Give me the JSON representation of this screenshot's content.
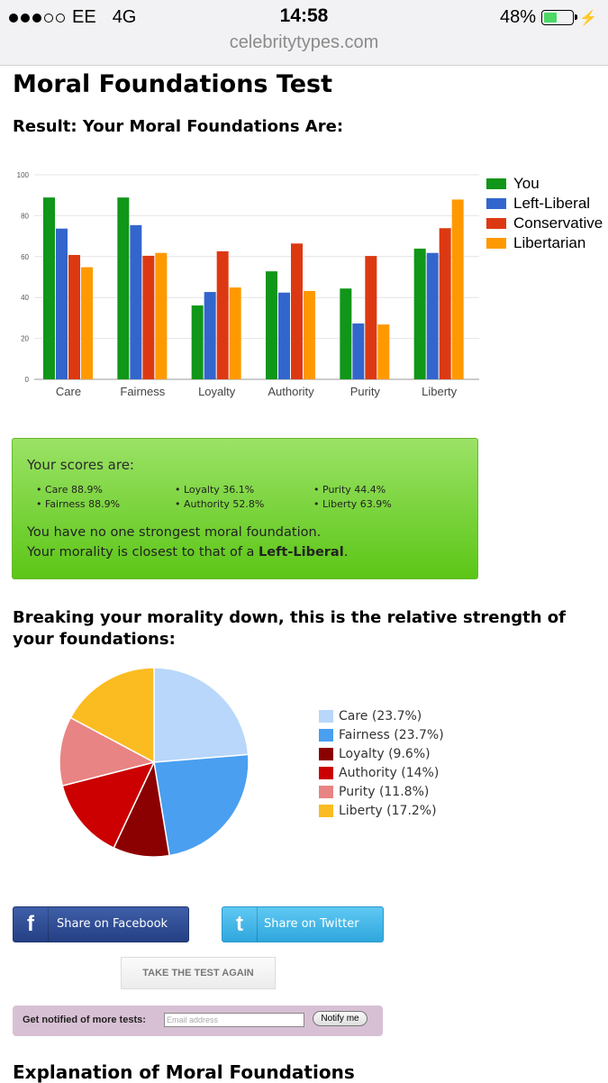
{
  "status_bar": {
    "carrier": "EE",
    "network": "4G",
    "time": "14:58",
    "battery": "48%",
    "battery_level": 0.48,
    "signal_bars_filled": 3,
    "signal_bars_total": 5
  },
  "browser": {
    "url": "celebritytypes.com"
  },
  "page": {
    "title": "Moral Foundations Test",
    "result_heading": "Result: Your Moral Foundations Are:"
  },
  "chart_data": [
    {
      "type": "bar",
      "categories": [
        "Care",
        "Fairness",
        "Loyalty",
        "Authority",
        "Purity",
        "Liberty"
      ],
      "series": [
        {
          "name": "You",
          "color": "#109618",
          "values": [
            88.9,
            88.9,
            36.1,
            52.8,
            44.4,
            63.9
          ]
        },
        {
          "name": "Left-Liberal",
          "color": "#3366cc",
          "values": [
            73.7,
            75.4,
            42.7,
            42.4,
            27.3,
            61.8
          ]
        },
        {
          "name": "Conservative",
          "color": "#dc3912",
          "values": [
            60.8,
            60.4,
            62.6,
            66.4,
            60.3,
            73.9
          ]
        },
        {
          "name": "Libertarian",
          "color": "#ff9900",
          "values": [
            54.8,
            61.8,
            44.9,
            43.2,
            26.8,
            87.9
          ]
        }
      ],
      "yticks": [
        0,
        20,
        40,
        60,
        80,
        100
      ],
      "ylim": [
        0,
        100
      ],
      "grid": true,
      "legend": "right"
    },
    {
      "type": "pie",
      "slices": [
        {
          "label": "Care (23.7%)",
          "value": 23.7,
          "color": "#b8d7fa"
        },
        {
          "label": "Fairness (23.7%)",
          "value": 23.7,
          "color": "#4a9ff0"
        },
        {
          "label": "Loyalty (9.6%)",
          "value": 9.6,
          "color": "#8b0000"
        },
        {
          "label": "Authority (14%)",
          "value": 14,
          "color": "#cc0000"
        },
        {
          "label": "Purity (11.8%)",
          "value": 11.8,
          "color": "#e88484"
        },
        {
          "label": "Liberty (17.2%)",
          "value": 17.2,
          "color": "#fbbc22"
        }
      ],
      "legend": "right"
    }
  ],
  "scores": {
    "label": "Your scores are:",
    "items": [
      "Care 88.9%",
      "Fairness 88.9%",
      "Loyalty 36.1%",
      "Authority 52.8%",
      "Purity 44.4%",
      "Liberty 63.9%"
    ],
    "summary_line1": "You have no one strongest moral foundation.",
    "summary_line2_prefix": "Your morality is closest to that of a ",
    "summary_line2_bold": "Left-Liberal",
    "summary_line2_suffix": "."
  },
  "breakdown_heading": "Breaking your morality down, this is the relative strength of your foundations:",
  "share": {
    "facebook_icon": "f",
    "facebook_label": "Share on Facebook",
    "twitter_icon": "t",
    "twitter_label": "Share on Twitter"
  },
  "retake_label": "TAKE THE TEST AGAIN",
  "notify": {
    "label": "Get notified of more tests:",
    "placeholder": "Email address",
    "button_label": "Notify me"
  },
  "explanation_heading": "Explanation of Moral Foundations",
  "icons": {
    "facebook": "facebook-icon",
    "twitter": "twitter-icon",
    "battery": "battery-icon",
    "charging": "charging-bolt-icon",
    "signal": "signal-dots-icon"
  }
}
